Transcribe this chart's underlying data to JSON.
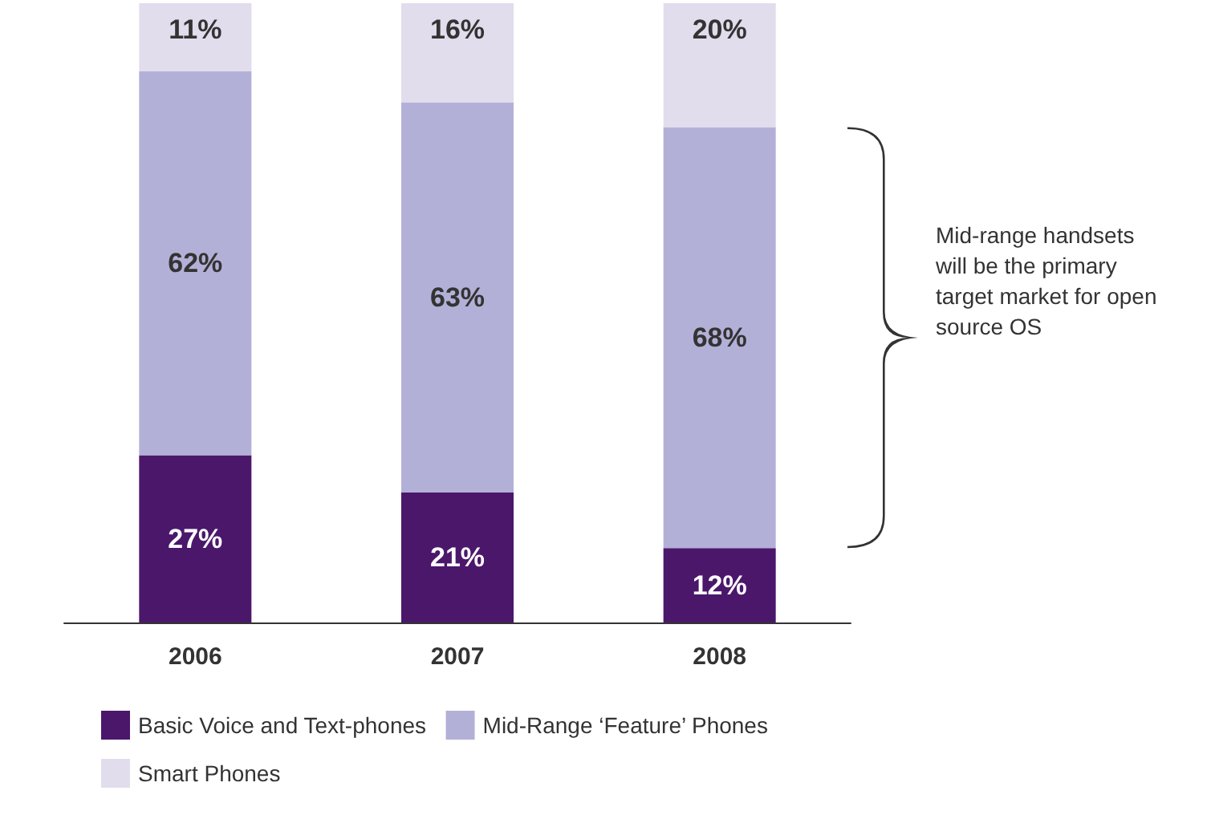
{
  "chart_data": {
    "type": "bar",
    "stacked": true,
    "categories": [
      "2006",
      "2007",
      "2008"
    ],
    "series": [
      {
        "name": "Basic Voice and Text-phones",
        "color": "#4b176b",
        "values": [
          27,
          21,
          12
        ],
        "value_labels": [
          "27%",
          "21%",
          "12%"
        ]
      },
      {
        "name": "Mid-Range ‘Feature’ Phones",
        "color": "#b3b0d8",
        "values": [
          62,
          63,
          68
        ],
        "value_labels": [
          "62%",
          "63%",
          "68%"
        ]
      },
      {
        "name": "Smart Phones",
        "color": "#e1dded",
        "values": [
          11,
          16,
          20
        ],
        "value_labels": [
          "11%",
          "16%",
          "20%"
        ]
      }
    ],
    "tick_labels": "x",
    "legend": "bottom left",
    "annotations": [
      "Mid-range handsets will be the primary target market for open source OS"
    ]
  }
}
